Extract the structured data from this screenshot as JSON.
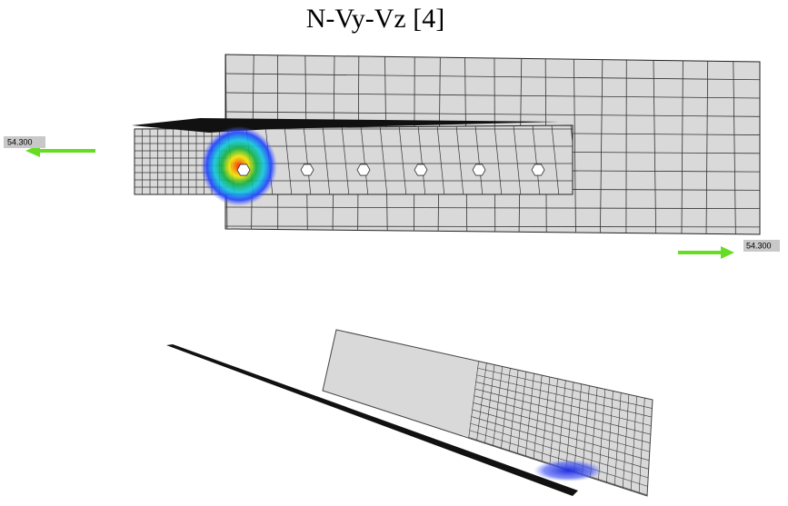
{
  "title": "N-Vy-Vz [4]",
  "loads": [
    {
      "label": "54.300"
    },
    {
      "label": "54.300"
    }
  ]
}
